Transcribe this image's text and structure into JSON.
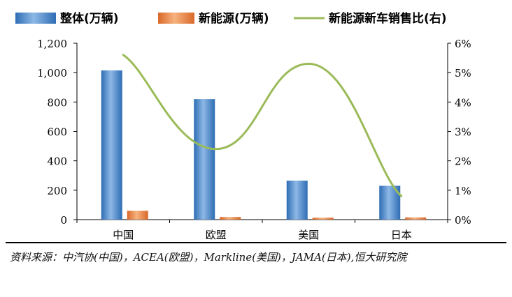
{
  "chart_data": {
    "type": "bar",
    "categories": [
      "中国",
      "欧盟",
      "美国",
      "日本"
    ],
    "series": [
      {
        "name": "整体(万辆)",
        "kind": "bar",
        "axis": "left",
        "color": "#4F81BD",
        "values": [
          1015,
          820,
          265,
          230
        ]
      },
      {
        "name": "新能源(万辆)",
        "kind": "bar",
        "axis": "left",
        "color": "#F79646",
        "values": [
          60,
          18,
          13,
          15
        ]
      },
      {
        "name": "新能源新车销售比(右)",
        "kind": "line",
        "axis": "right",
        "color": "#9BBB59",
        "values": [
          5.6,
          2.4,
          5.3,
          0.8
        ]
      }
    ],
    "y_left": {
      "min": 0,
      "max": 1200,
      "ticks": [
        0,
        200,
        400,
        600,
        800,
        1000,
        1200
      ],
      "tick_labels": [
        "0",
        "200",
        "400",
        "600",
        "800",
        "1,000",
        "1,200"
      ]
    },
    "y_right": {
      "min": 0,
      "max": 6,
      "unit": "%",
      "ticks": [
        0,
        1,
        2,
        3,
        4,
        5,
        6
      ],
      "tick_labels": [
        "0%",
        "1%",
        "2%",
        "3%",
        "4%",
        "5%",
        "6%"
      ]
    },
    "legend_position": "top",
    "grid": false
  },
  "source_note": "资料来源：中汽协(中国)，ACEA(欧盟)，Markline(美国)，JAMA(日本),恒大研究院"
}
